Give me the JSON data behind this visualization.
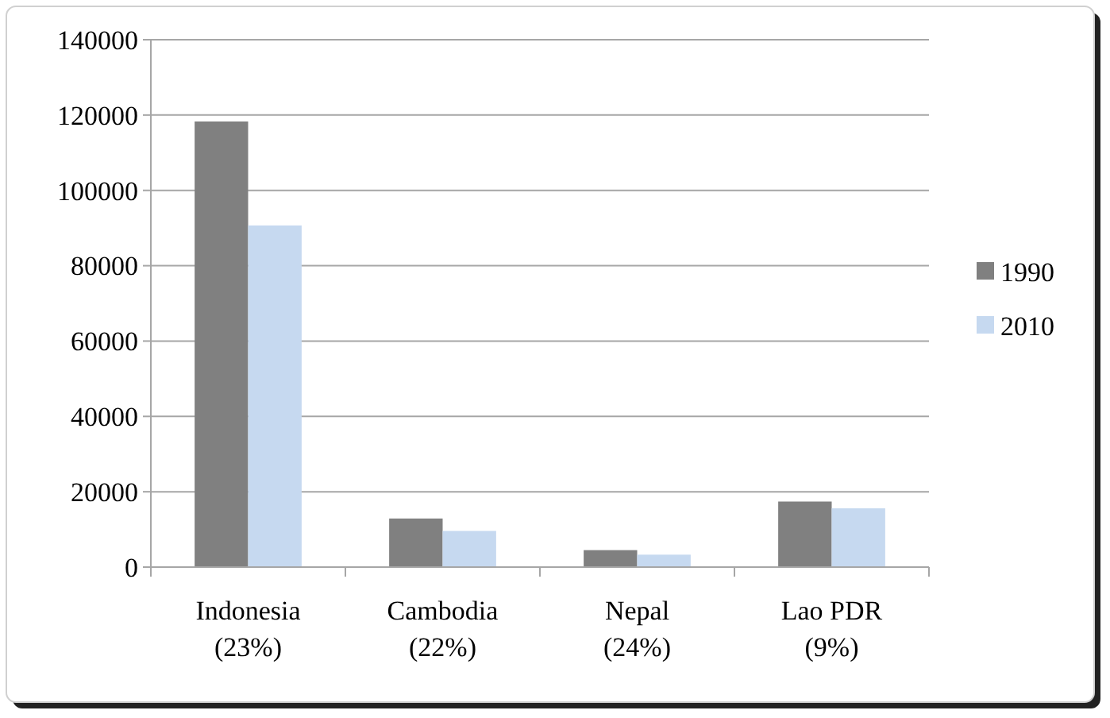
{
  "chart_data": {
    "type": "bar",
    "categories": [
      "Indonesia\n(23%)",
      "Cambodia\n(22%)",
      "Nepal\n(24%)",
      "Lao PDR\n(9%)"
    ],
    "series": [
      {
        "name": "1990",
        "color": "#808080",
        "values": [
          118300,
          12900,
          4500,
          17400
        ]
      },
      {
        "name": "2010",
        "color": "#c6d9f0",
        "values": [
          90700,
          9600,
          3300,
          15600
        ]
      }
    ],
    "ylim": [
      0,
      140000
    ],
    "yticks": [
      0,
      20000,
      40000,
      60000,
      80000,
      100000,
      120000,
      140000
    ],
    "grid": "y",
    "legend": "right"
  }
}
